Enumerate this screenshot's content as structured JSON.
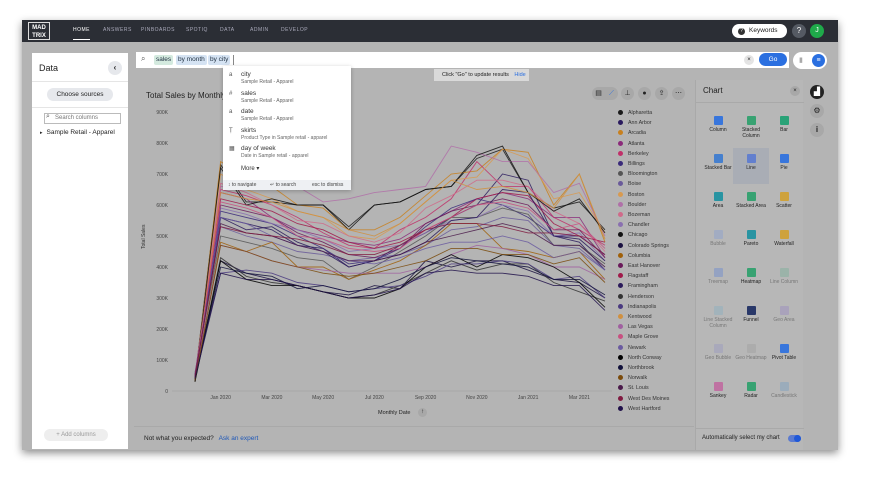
{
  "nav": {
    "logo": "MAD TRIX",
    "tabs": [
      "HOME",
      "ANSWERS",
      "PINBOARDS",
      "SPOTIQ",
      "DATA",
      "ADMIN",
      "DEVELOP"
    ],
    "active": "HOME",
    "keywords": "Keywords",
    "help": "?",
    "avatar": "J"
  },
  "left": {
    "title": "Data",
    "choose_sources": "Choose sources",
    "search_placeholder": "Search columns",
    "tree_item": "Sample Retail - Apparel",
    "add_columns": "Add columns"
  },
  "search": {
    "tokens": [
      "sales",
      "by month",
      "by city"
    ],
    "go": "Go",
    "clear": "×"
  },
  "dropdown": {
    "items": [
      {
        "icon": "a",
        "name": "city",
        "source": "Sample Retail - Apparel"
      },
      {
        "icon": "#",
        "name": "sales",
        "source": "Sample Retail - Apparel"
      },
      {
        "icon": "a",
        "name": "date",
        "source": "Sample Retail - Apparel"
      },
      {
        "icon": "filter",
        "name": "skirts",
        "source": "Product Type in Sample retail - apparel"
      },
      {
        "icon": "calendar",
        "name": "day of week",
        "source": "Date in Sample retail - apparel"
      }
    ],
    "more": "More ▾",
    "hints": [
      "↕ to navigate",
      "↵ to search",
      "esc to dismiss"
    ]
  },
  "tip": {
    "text": "Click \"Go\" to update results",
    "hide": "Hide"
  },
  "chart_title": "Total Sales by Monthly",
  "footer": {
    "question": "Not what you expected?",
    "link": "Ask an expert"
  },
  "chart_data": {
    "type": "line",
    "ylabel": "Total Sales",
    "xlabel": "Monthly Date",
    "ylim": [
      0,
      900000
    ],
    "yticks": [
      "0",
      "100K",
      "200K",
      "300K",
      "400K",
      "500K",
      "600K",
      "700K",
      "800K",
      "900K"
    ],
    "x": [
      "Dec 2019",
      "Jan 2020",
      "Feb 2020",
      "Mar 2020",
      "Apr 2020",
      "May 2020",
      "Jun 2020",
      "Jul 2020",
      "Aug 2020",
      "Sep 2020",
      "Oct 2020",
      "Nov 2020",
      "Dec 2020",
      "Jan 2021",
      "Feb 2021",
      "Mar 2021",
      "Apr 2021"
    ],
    "xticks": [
      "Jan 2020",
      "Mar 2020",
      "May 2020",
      "Jul 2020",
      "Sep 2020",
      "Nov 2020",
      "Jan 2021",
      "Mar 2021"
    ],
    "legend": "right",
    "series": [
      {
        "name": "Alpharetta",
        "color": "#1a1a1a",
        "values": [
          40000,
          730000,
          610000,
          610000,
          600000,
          600000,
          530000,
          600000,
          610000,
          650000,
          660000,
          750000,
          780000,
          640000,
          590000,
          610000,
          520000
        ]
      },
      {
        "name": "Ann Arbor",
        "color": "#2a1a5e",
        "values": [
          45000,
          560000,
          540000,
          520000,
          470000,
          460000,
          400000,
          420000,
          470000,
          510000,
          560000,
          600000,
          700000,
          680000,
          500000,
          480000,
          390000
        ]
      },
      {
        "name": "Arcadia",
        "color": "#c8801e",
        "values": [
          30000,
          740000,
          690000,
          660000,
          600000,
          590000,
          520000,
          520000,
          560000,
          630000,
          700000,
          710000,
          780000,
          770000,
          600000,
          700000,
          480000
        ]
      },
      {
        "name": "Atlanta",
        "color": "#8b2a7a",
        "values": [
          50000,
          640000,
          620000,
          560000,
          520000,
          500000,
          480000,
          470000,
          490000,
          540000,
          580000,
          620000,
          640000,
          620000,
          560000,
          560000,
          430000
        ]
      },
      {
        "name": "Berkeley",
        "color": "#c0306a",
        "values": [
          35000,
          650000,
          630000,
          600000,
          560000,
          510000,
          470000,
          460000,
          520000,
          560000,
          620000,
          740000,
          660000,
          660000,
          560000,
          520000,
          470000
        ]
      },
      {
        "name": "Billings",
        "color": "#3a2a7a",
        "values": [
          40000,
          580000,
          560000,
          540000,
          500000,
          460000,
          410000,
          420000,
          460000,
          530000,
          590000,
          620000,
          600000,
          560000,
          500000,
          500000,
          440000
        ]
      },
      {
        "name": "Bloomington",
        "color": "#555555",
        "values": [
          60000,
          500000,
          480000,
          460000,
          430000,
          420000,
          360000,
          400000,
          450000,
          500000,
          560000,
          560000,
          590000,
          570000,
          470000,
          470000,
          410000
        ]
      },
      {
        "name": "Boise",
        "color": "#6a5a9a",
        "values": [
          50000,
          530000,
          500000,
          480000,
          450000,
          440000,
          420000,
          430000,
          440000,
          470000,
          520000,
          530000,
          560000,
          550000,
          470000,
          460000,
          390000
        ]
      },
      {
        "name": "Boston",
        "color": "#d89a50",
        "values": [
          45000,
          700000,
          650000,
          620000,
          580000,
          560000,
          500000,
          490000,
          540000,
          610000,
          680000,
          690000,
          780000,
          750000,
          620000,
          640000,
          510000
        ]
      },
      {
        "name": "Boulder",
        "color": "#b070a8",
        "values": [
          50000,
          660000,
          650000,
          650000,
          660000,
          610000,
          620000,
          640000,
          650000,
          660000,
          790000,
          770000,
          740000,
          740000,
          640000,
          670000,
          500000
        ]
      },
      {
        "name": "Bozeman",
        "color": "#d06a8a",
        "values": [
          40000,
          670000,
          640000,
          600000,
          550000,
          540000,
          500000,
          480000,
          510000,
          590000,
          630000,
          680000,
          680000,
          660000,
          580000,
          540000,
          450000
        ]
      },
      {
        "name": "Chandler",
        "color": "#8a70b0",
        "values": [
          55000,
          590000,
          570000,
          540000,
          520000,
          490000,
          450000,
          460000,
          470000,
          510000,
          550000,
          560000,
          600000,
          580000,
          500000,
          510000,
          420000
        ]
      },
      {
        "name": "Chicago",
        "color": "#111111",
        "values": [
          30000,
          720000,
          600000,
          620000,
          600000,
          600000,
          520000,
          600000,
          610000,
          650000,
          660000,
          760000,
          790000,
          640000,
          580000,
          620000,
          510000
        ]
      },
      {
        "name": "Colorado Springs",
        "color": "#1a1040",
        "values": [
          45000,
          420000,
          380000,
          360000,
          340000,
          320000,
          310000,
          340000,
          330000,
          420000,
          400000,
          420000,
          420000,
          390000,
          360000,
          350000,
          300000
        ]
      },
      {
        "name": "Columbia",
        "color": "#a0600a",
        "values": [
          40000,
          480000,
          450000,
          480000,
          400000,
          400000,
          360000,
          390000,
          420000,
          470000,
          540000,
          540000,
          460000,
          450000,
          430000,
          450000,
          360000
        ]
      },
      {
        "name": "East Hanover",
        "color": "#6a1a5a",
        "values": [
          50000,
          600000,
          580000,
          560000,
          510000,
          480000,
          440000,
          430000,
          460000,
          540000,
          580000,
          600000,
          620000,
          600000,
          520000,
          520000,
          430000
        ]
      },
      {
        "name": "Flagstaff",
        "color": "#a01a4a",
        "values": [
          45000,
          620000,
          600000,
          580000,
          540000,
          520000,
          480000,
          460000,
          480000,
          520000,
          560000,
          620000,
          640000,
          630000,
          540000,
          500000,
          480000
        ]
      },
      {
        "name": "Framingham",
        "color": "#2a1a5a",
        "values": [
          40000,
          560000,
          520000,
          530000,
          480000,
          450000,
          400000,
          420000,
          440000,
          480000,
          550000,
          560000,
          650000,
          640000,
          500000,
          490000,
          420000
        ]
      },
      {
        "name": "Henderson",
        "color": "#333333",
        "values": [
          35000,
          430000,
          370000,
          350000,
          340000,
          320000,
          300000,
          310000,
          340000,
          380000,
          420000,
          390000,
          410000,
          410000,
          350000,
          320000,
          290000
        ]
      },
      {
        "name": "Indianapolis",
        "color": "#4a3a80",
        "values": [
          55000,
          380000,
          390000,
          380000,
          350000,
          340000,
          320000,
          330000,
          340000,
          370000,
          410000,
          410000,
          420000,
          410000,
          360000,
          370000,
          300000
        ]
      },
      {
        "name": "Kentwood",
        "color": "#d09040",
        "values": [
          40000,
          640000,
          620000,
          610000,
          580000,
          560000,
          520000,
          500000,
          540000,
          610000,
          680000,
          650000,
          660000,
          640000,
          590000,
          700000,
          490000
        ]
      },
      {
        "name": "Las Vegas",
        "color": "#a060a0",
        "values": [
          50000,
          470000,
          450000,
          420000,
          400000,
          390000,
          380000,
          380000,
          380000,
          400000,
          440000,
          470000,
          460000,
          440000,
          400000,
          400000,
          360000
        ]
      },
      {
        "name": "Maple Grove",
        "color": "#c85080",
        "values": [
          45000,
          610000,
          590000,
          560000,
          500000,
          490000,
          460000,
          450000,
          460000,
          520000,
          560000,
          600000,
          610000,
          590000,
          520000,
          540000,
          460000
        ]
      },
      {
        "name": "Newark",
        "color": "#6a5aa0",
        "values": [
          50000,
          560000,
          540000,
          500000,
          470000,
          450000,
          420000,
          410000,
          430000,
          460000,
          480000,
          480000,
          500000,
          480000,
          430000,
          450000,
          390000
        ]
      },
      {
        "name": "North Conway",
        "color": "#000000",
        "values": [
          30000,
          420000,
          360000,
          340000,
          340000,
          320000,
          300000,
          300000,
          330000,
          400000,
          440000,
          400000,
          440000,
          430000,
          400000,
          350000,
          270000
        ]
      },
      {
        "name": "Northbrook",
        "color": "#10103a",
        "values": [
          40000,
          400000,
          380000,
          370000,
          330000,
          340000,
          320000,
          330000,
          360000,
          400000,
          430000,
          420000,
          410000,
          400000,
          360000,
          360000,
          310000
        ]
      },
      {
        "name": "Norwalk",
        "color": "#7a4a0a",
        "values": [
          35000,
          470000,
          450000,
          420000,
          400000,
          380000,
          370000,
          380000,
          400000,
          420000,
          460000,
          460000,
          440000,
          440000,
          410000,
          430000,
          350000
        ]
      },
      {
        "name": "St. Louis",
        "color": "#4a1a4a",
        "values": [
          45000,
          540000,
          510000,
          500000,
          470000,
          450000,
          420000,
          420000,
          440000,
          480000,
          500000,
          520000,
          540000,
          520000,
          470000,
          470000,
          400000
        ]
      },
      {
        "name": "West Des Moines",
        "color": "#801a40",
        "values": [
          50000,
          530000,
          510000,
          500000,
          490000,
          470000,
          440000,
          440000,
          470000,
          520000,
          540000,
          540000,
          530000,
          510000,
          510000,
          500000,
          440000
        ]
      },
      {
        "name": "West Hartford",
        "color": "#20104a",
        "values": [
          40000,
          380000,
          360000,
          360000,
          340000,
          320000,
          300000,
          310000,
          330000,
          380000,
          390000,
          380000,
          380000,
          370000,
          340000,
          340000,
          260000
        ]
      }
    ]
  },
  "chart_panel": {
    "title": "Chart",
    "close": "×",
    "selected": "Line",
    "auto_select": "Automatically select my chart",
    "auto_select_on": true,
    "types": [
      {
        "label": "Column",
        "enabled": true,
        "color": "#2a6fe0"
      },
      {
        "label": "Stacked Column",
        "enabled": true,
        "color": "#2aa06a"
      },
      {
        "label": "Bar",
        "enabled": true,
        "color": "#1aa070"
      },
      {
        "label": "Stacked Bar",
        "enabled": true,
        "color": "#3a7ad0"
      },
      {
        "label": "Line",
        "enabled": true,
        "color": "#5a7ad0"
      },
      {
        "label": "Pie",
        "enabled": true,
        "color": "#2a6fe0"
      },
      {
        "label": "Area",
        "enabled": true,
        "color": "#1a90a0"
      },
      {
        "label": "Stacked Area",
        "enabled": true,
        "color": "#2aa06a"
      },
      {
        "label": "Scatter",
        "enabled": true,
        "color": "#d0a030"
      },
      {
        "label": "Bubble",
        "enabled": false,
        "color": "#8aa0d0"
      },
      {
        "label": "Pareto",
        "enabled": true,
        "color": "#1a90a0"
      },
      {
        "label": "Waterfall",
        "enabled": true,
        "color": "#d0a030"
      },
      {
        "label": "Treemap",
        "enabled": false,
        "color": "#6a8ad0"
      },
      {
        "label": "Heatmap",
        "enabled": true,
        "color": "#2aa06a"
      },
      {
        "label": "Line Column",
        "enabled": false,
        "color": "#7ab09a"
      },
      {
        "label": "Line Stacked Column",
        "enabled": false,
        "color": "#8ab0c0"
      },
      {
        "label": "Funnel",
        "enabled": true,
        "color": "#1a2a60"
      },
      {
        "label": "Geo Area",
        "enabled": false,
        "color": "#9a8ac0"
      },
      {
        "label": "Geo Bubble",
        "enabled": false,
        "color": "#9a9ac0"
      },
      {
        "label": "Geo Heatmap",
        "enabled": false,
        "color": "#a0a0a0"
      },
      {
        "label": "Pivot Table",
        "enabled": true,
        "color": "#2a6fe0"
      },
      {
        "label": "Sankey",
        "enabled": true,
        "color": "#c06aa0"
      },
      {
        "label": "Radar",
        "enabled": true,
        "color": "#2aa06a"
      },
      {
        "label": "Candlestick",
        "enabled": false,
        "color": "#7aa0c0"
      }
    ]
  },
  "rail": {
    "icons": [
      "chart-icon",
      "gear-icon",
      "info-icon"
    ]
  }
}
